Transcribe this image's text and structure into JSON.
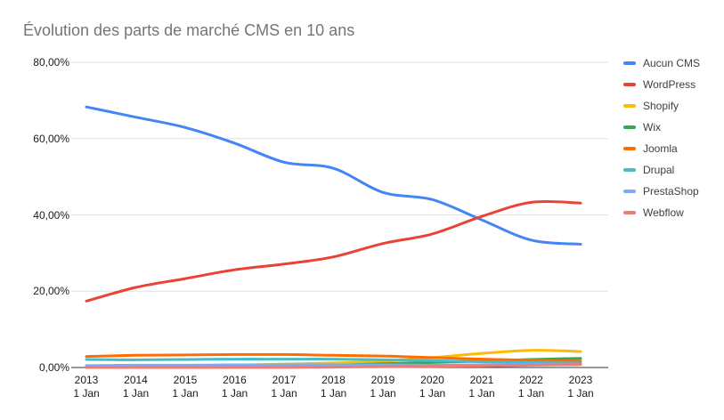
{
  "chart_data": {
    "type": "line",
    "title": "Évolution des parts de marché CMS en 10 ans",
    "xlabel": "",
    "ylabel": "",
    "x_categories": [
      "2013",
      "2014",
      "2015",
      "2016",
      "2017",
      "2018",
      "2019",
      "2020",
      "2021",
      "2022",
      "2023"
    ],
    "x_sublabel": "1 Jan",
    "ylim": [
      0,
      80
    ],
    "y_ticks": {
      "values": [
        0,
        20,
        40,
        60,
        80
      ],
      "labels": [
        "0,00%",
        "20,00%",
        "40,00%",
        "60,00%",
        "80,00%"
      ]
    },
    "grid": true,
    "smooth": true,
    "legend_position": "right",
    "axis_color": "#333333",
    "gridline_color": "#e0e0e0",
    "series": [
      {
        "name": "Aucun CMS",
        "color": "#4285F4",
        "values": [
          68.3,
          65.6,
          62.9,
          58.8,
          53.8,
          52.2,
          45.9,
          44.0,
          38.7,
          33.4,
          32.3
        ]
      },
      {
        "name": "WordPress",
        "color": "#EA4335",
        "values": [
          17.4,
          21.0,
          23.3,
          25.6,
          27.1,
          29.0,
          32.5,
          35.0,
          39.6,
          43.3,
          43.1
        ]
      },
      {
        "name": "Shopify",
        "color": "#FBBC04",
        "values": [
          0.1,
          0.2,
          0.4,
          0.6,
          0.9,
          1.2,
          1.6,
          2.6,
          3.7,
          4.5,
          4.2
        ]
      },
      {
        "name": "Wix",
        "color": "#34A853",
        "values": [
          0.0,
          0.1,
          0.1,
          0.3,
          0.4,
          0.6,
          1.0,
          1.3,
          1.7,
          2.1,
          2.4
        ]
      },
      {
        "name": "Joomla",
        "color": "#FF6D01",
        "values": [
          2.9,
          3.2,
          3.3,
          3.4,
          3.4,
          3.2,
          3.0,
          2.6,
          2.2,
          1.9,
          1.7
        ]
      },
      {
        "name": "Drupal",
        "color": "#46BDC6",
        "values": [
          2.1,
          2.0,
          2.1,
          2.2,
          2.2,
          2.2,
          2.0,
          1.8,
          1.5,
          1.3,
          1.2
        ]
      },
      {
        "name": "PrestaShop",
        "color": "#7BAAF7",
        "values": [
          0.5,
          0.6,
          0.6,
          0.7,
          0.7,
          0.7,
          0.7,
          0.6,
          0.7,
          0.8,
          0.8
        ]
      },
      {
        "name": "Webflow",
        "color": "#F07B72",
        "values": [
          0.0,
          0.0,
          0.0,
          0.0,
          0.0,
          0.1,
          0.2,
          0.3,
          0.4,
          0.6,
          0.8
        ]
      }
    ]
  }
}
